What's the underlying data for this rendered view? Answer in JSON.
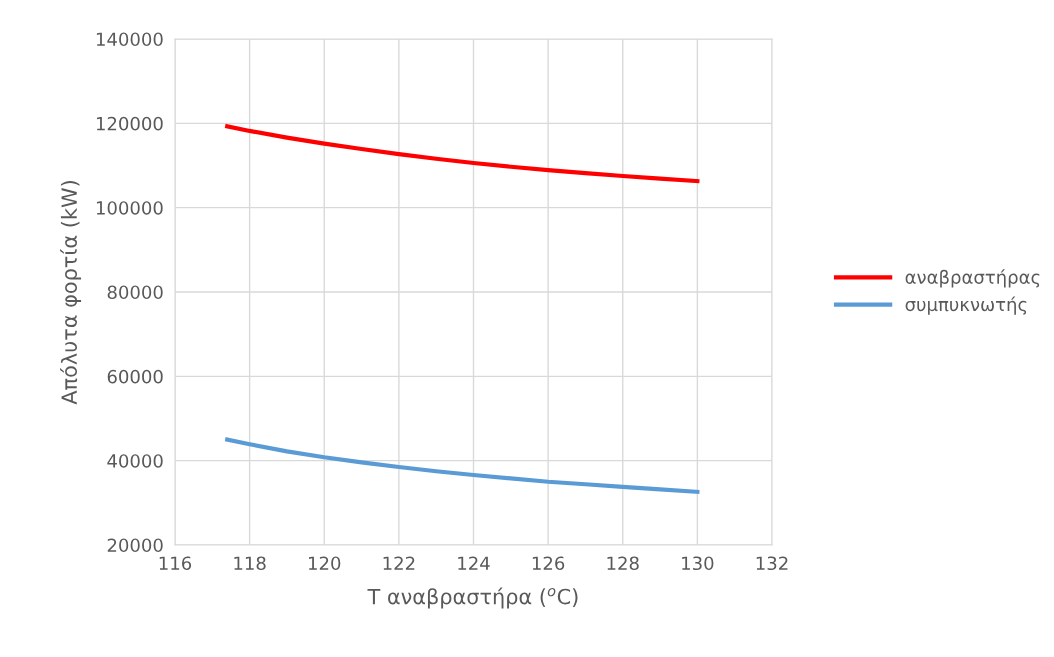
{
  "chart_data": {
    "type": "line",
    "xlabel": "T αναβραστήρα ($^{o}$C)",
    "ylabel": "Απόλυτα φορτία (kW)",
    "xlim": [
      116,
      132
    ],
    "xticks": [
      116,
      118,
      120,
      122,
      124,
      126,
      128,
      130,
      132
    ],
    "ylim": [
      20000,
      140000
    ],
    "yticks": [
      20000,
      40000,
      60000,
      80000,
      100000,
      120000,
      140000
    ],
    "grid": true,
    "legend": "right",
    "marker": "none",
    "line_style": "solid",
    "series": [
      {
        "name": "αναβραστήρας",
        "color": "#ff0000",
        "x": [
          117.4,
          118,
          119,
          120,
          121,
          122,
          123,
          124,
          125,
          126,
          127,
          128,
          129,
          130
        ],
        "values": [
          119300,
          118200,
          116600,
          115200,
          113900,
          112700,
          111600,
          110600,
          109700,
          108900,
          108200,
          107500,
          106900,
          106300
        ]
      },
      {
        "name": "συμπυκνωτής",
        "color": "#5b9bd5",
        "x": [
          117.4,
          118,
          119,
          120,
          121,
          122,
          123,
          124,
          125,
          126,
          127,
          128,
          129,
          130
        ],
        "values": [
          45000,
          43900,
          42200,
          40800,
          39600,
          38500,
          37500,
          36600,
          35800,
          35000,
          34400,
          33800,
          33200,
          32600
        ]
      }
    ]
  }
}
